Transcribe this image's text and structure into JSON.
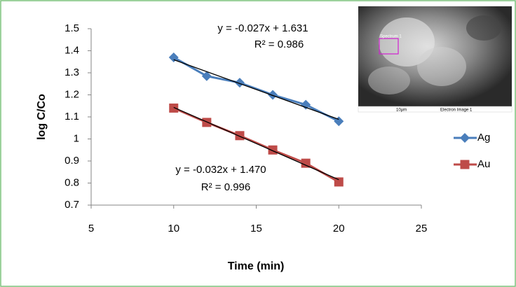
{
  "chart_data": {
    "type": "line",
    "x_label": "Time (min)",
    "y_label": "log C/Co",
    "x": [
      10,
      12,
      14,
      16,
      18,
      20
    ],
    "series": [
      {
        "name": "Ag",
        "color": "#4a7ebb",
        "marker": "diamond",
        "values": [
          1.37,
          1.285,
          1.255,
          1.2,
          1.155,
          1.08
        ],
        "equation": "y = -0.027x + 1.631",
        "r2": "R² = 0.986"
      },
      {
        "name": "Au",
        "color": "#be4b48",
        "marker": "square",
        "values": [
          1.14,
          1.075,
          1.015,
          0.95,
          0.89,
          0.805
        ],
        "equation": "y = -0.032x + 1.470",
        "r2": "R² = 0.996"
      }
    ],
    "trendline_color": "#000000",
    "xlim": [
      5,
      25
    ],
    "xticks": [
      5,
      10,
      15,
      20,
      25
    ],
    "ylim": [
      0.7,
      1.5
    ],
    "yticks": [
      0.7,
      0.8,
      0.9,
      1,
      1.1,
      1.2,
      1.3,
      1.4,
      1.5
    ],
    "legend": "right",
    "inset": {
      "label": "Spectrum 1",
      "scale": "10µm",
      "caption": "Electron Image 1"
    }
  }
}
